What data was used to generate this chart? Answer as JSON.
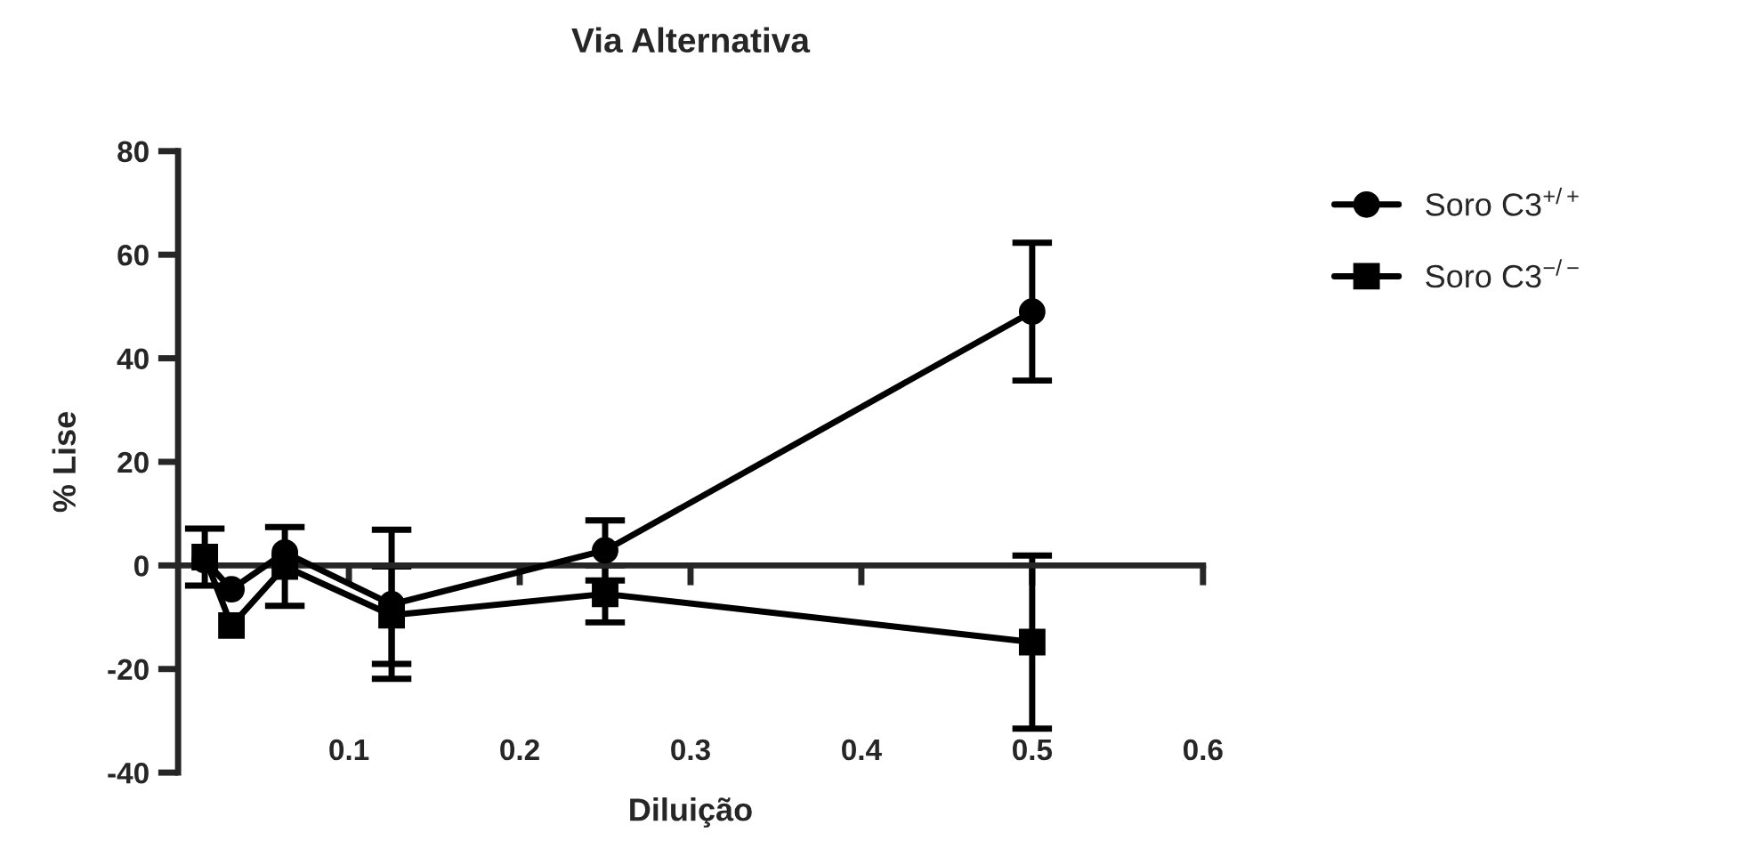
{
  "chart_data": {
    "type": "line",
    "title": "Via Alternativa",
    "xlabel": "Diluição",
    "ylabel": "% Lise",
    "xlim": [
      0,
      0.6
    ],
    "xticks": [
      0.1,
      0.2,
      0.3,
      0.4,
      0.5,
      0.6
    ],
    "ylim": [
      -40,
      80
    ],
    "yticks": [
      -40,
      -20,
      0,
      20,
      40,
      60,
      80
    ],
    "legend": "top right",
    "series": [
      {
        "name": "Soro C3$^{+/+}$",
        "color": "#000000",
        "marker": "circle",
        "x": [
          0.015625,
          0.03125,
          0.0625,
          0.125,
          0.25,
          0.5
        ],
        "values": [
          1,
          -4.6,
          2.5,
          -7.5,
          2.9,
          49
        ],
        "errors": [
          null,
          null,
          null,
          14.4,
          5.8,
          13.3
        ]
      },
      {
        "name": "Soro C3$^{−/−}$",
        "color": "#000000",
        "marker": "square",
        "x": [
          0.015625,
          0.03125,
          0.0625,
          0.125,
          0.25,
          0.5
        ],
        "values": [
          1.6,
          -11.6,
          -0.2,
          -9.6,
          -5.5,
          -14.8
        ],
        "errors": [
          5.5,
          null,
          7.6,
          9.4,
          5.5,
          16.7
        ]
      }
    ]
  }
}
